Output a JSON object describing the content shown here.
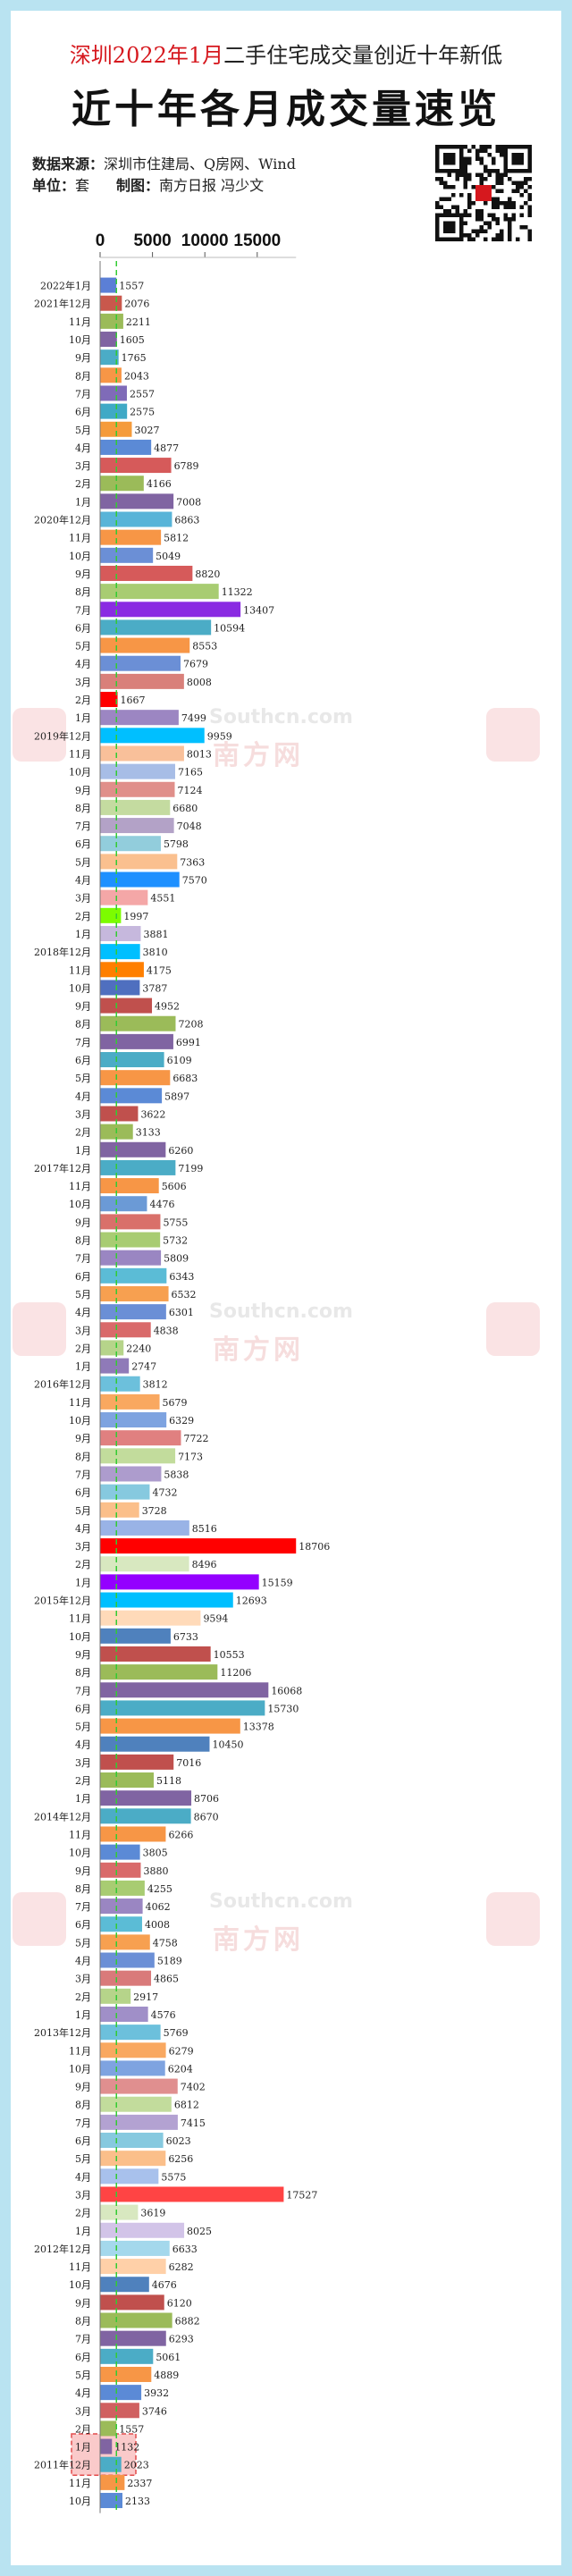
{
  "header": {
    "title_red": "深圳2022年1月",
    "title_rest": "二手住宅成交量创近十年新低",
    "main_title": "近十年各月成交量速览",
    "source_label": "数据来源：",
    "source_value": "深圳市住建局、Q房网、Wind",
    "unit_label": "单位：",
    "unit_value": "套",
    "maker_label": "制图：",
    "maker_value": "南方日报 冯少文"
  },
  "watermarks": {
    "url": "Southcn.com",
    "cn": "南方网",
    "logo_text": "南方"
  },
  "chart_data": {
    "type": "bar",
    "orientation": "horizontal",
    "x_ticks": [
      0,
      5000,
      10000,
      15000
    ],
    "xlim": [
      0,
      18706
    ],
    "reference_value": 1557,
    "reference_line_color": "#33cc33",
    "categories": [
      "2022年1月",
      "2021年12月",
      "11月",
      "10月",
      "9月",
      "8月",
      "7月",
      "6月",
      "5月",
      "4月",
      "3月",
      "2月",
      "1月",
      "2020年12月",
      "11月",
      "10月",
      "9月",
      "8月",
      "7月",
      "6月",
      "5月",
      "4月",
      "3月",
      "2月",
      "1月",
      "2019年12月",
      "11月",
      "10月",
      "9月",
      "8月",
      "7月",
      "6月",
      "5月",
      "4月",
      "3月",
      "2月",
      "1月",
      "2018年12月",
      "11月",
      "10月",
      "9月",
      "8月",
      "7月",
      "6月",
      "5月",
      "4月",
      "3月",
      "2月",
      "1月",
      "2017年12月",
      "11月",
      "10月",
      "9月",
      "8月",
      "7月",
      "6月",
      "5月",
      "4月",
      "3月",
      "2月",
      "1月",
      "2016年12月",
      "11月",
      "10月",
      "9月",
      "8月",
      "7月",
      "6月",
      "5月",
      "4月",
      "3月",
      "2月",
      "1月",
      "2015年12月",
      "11月",
      "10月",
      "9月",
      "8月",
      "7月",
      "6月",
      "5月",
      "4月",
      "3月",
      "2月",
      "1月",
      "2014年12月",
      "11月",
      "10月",
      "9月",
      "8月",
      "7月",
      "6月",
      "5月",
      "4月",
      "3月",
      "2月",
      "1月",
      "2013年12月",
      "11月",
      "10月",
      "9月",
      "8月",
      "7月",
      "6月",
      "5月",
      "4月",
      "3月",
      "2月",
      "1月",
      "2012年12月",
      "11月",
      "10月",
      "9月",
      "8月",
      "7月",
      "6月",
      "5月",
      "4月",
      "3月",
      "2月",
      "1月",
      "2011年12月",
      "11月",
      "10月"
    ],
    "values": [
      1557,
      2076,
      2211,
      1605,
      1765,
      2043,
      2557,
      2575,
      3027,
      4877,
      6789,
      4166,
      7008,
      6863,
      5812,
      5049,
      8820,
      11322,
      13407,
      10594,
      8553,
      7679,
      8008,
      1667,
      7499,
      9959,
      8013,
      7165,
      7124,
      6680,
      7048,
      5798,
      7363,
      7570,
      4551,
      1997,
      3881,
      3810,
      4175,
      3787,
      4952,
      7208,
      6991,
      6109,
      6683,
      5897,
      3622,
      3133,
      6260,
      7199,
      5606,
      4476,
      5755,
      5732,
      5809,
      6343,
      6532,
      6301,
      4838,
      2240,
      2747,
      3812,
      5679,
      6329,
      7722,
      7173,
      5838,
      4732,
      3728,
      8516,
      18706,
      8496,
      15159,
      12693,
      9594,
      6733,
      10553,
      11206,
      16068,
      15730,
      13378,
      10450,
      7016,
      5118,
      8706,
      8670,
      6266,
      3805,
      3880,
      4255,
      4062,
      4008,
      4758,
      5189,
      4865,
      2917,
      4576,
      5769,
      6279,
      6204,
      7402,
      6812,
      7415,
      6023,
      6256,
      5575,
      17527,
      3619,
      8025,
      6633,
      6282,
      4676,
      6120,
      6882,
      6293,
      5061,
      4889,
      3932,
      3746,
      1557,
      1132,
      2023,
      2337,
      2133
    ],
    "colors": [
      "#5b7fd6",
      "#c9584c",
      "#9bbb59",
      "#8064a2",
      "#4bacc6",
      "#f79646",
      "#7f6bb8",
      "#3fa9c6",
      "#f59b3b",
      "#5b8ad6",
      "#d65a5a",
      "#9bbb59",
      "#8064a2",
      "#58b4d8",
      "#f79646",
      "#6b8fd6",
      "#d65a5a",
      "#a8cc72",
      "#8a2be2",
      "#4bacc6",
      "#f79646",
      "#6b8fd6",
      "#d9807a",
      "#ff0000",
      "#9c86c2",
      "#00bfff",
      "#f9c09a",
      "#a7bde6",
      "#e08f8a",
      "#c4dba0",
      "#b3a2c7",
      "#92cddc",
      "#fac08f",
      "#1e90ff",
      "#f4a7a7",
      "#7cfc00",
      "#c6b8dd",
      "#00bfff",
      "#ff7f00",
      "#4f6fbf",
      "#c0504d",
      "#9bbb59",
      "#8064a2",
      "#4bacc6",
      "#f79646",
      "#5b8ad6",
      "#c0504d",
      "#9bbb59",
      "#8064a2",
      "#4bacc6",
      "#f79646",
      "#6b9ad6",
      "#d9706a",
      "#a8cc72",
      "#9a86c2",
      "#5bbcd6",
      "#f7a050",
      "#6b8fd6",
      "#d96a6a",
      "#b6d48a",
      "#8f7ab8",
      "#6cc0dc",
      "#f9a860",
      "#7ea3e0",
      "#e08080",
      "#c2dc9c",
      "#ad9ccd",
      "#86c9df",
      "#fbbf8a",
      "#99b3e6",
      "#ff0000",
      "#d8e8c0",
      "#9400ff",
      "#00bfff",
      "#ffdab9",
      "#4f81bd",
      "#c0504d",
      "#9bbb59",
      "#8064a2",
      "#4bacc6",
      "#f79646",
      "#4f81bd",
      "#c0504d",
      "#9bbb59",
      "#8064a2",
      "#4bacc6",
      "#f79646",
      "#5b8ad6",
      "#d96a6a",
      "#a8cc72",
      "#9a86c2",
      "#5bbcd6",
      "#f7a050",
      "#6b8fd6",
      "#d97a7a",
      "#b6d48a",
      "#a08fc8",
      "#6cc0dc",
      "#f9a860",
      "#7ea3e0",
      "#e08f8f",
      "#c2dc9c",
      "#b3a2d2",
      "#86c9df",
      "#fbbf8a",
      "#a8c1ec",
      "#ff4444",
      "#d8e8c0",
      "#d2c4e8",
      "#a4d8ec",
      "#ffd0a8",
      "#4f81bd",
      "#c0504d",
      "#9bbb59",
      "#8064a2",
      "#4bacc6",
      "#f79646",
      "#5b8ad6",
      "#d06060",
      "#9bbb59",
      "#8064a2",
      "#4bacc6",
      "#f79646",
      "#5b8ad6"
    ],
    "highlight_indices": [
      120,
      121
    ],
    "xlabel": "",
    "ylabel": ""
  }
}
